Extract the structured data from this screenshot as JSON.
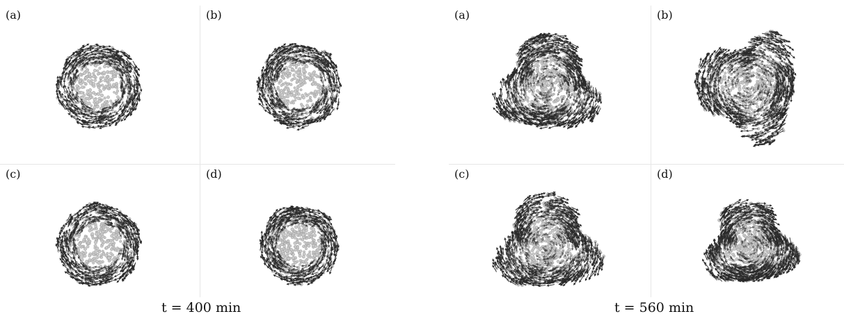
{
  "figures": [
    {
      "caption": "t = 400 min",
      "panels": [
        {
          "label": "(a)",
          "shape": "round",
          "radius": 0.6,
          "seed": 11
        },
        {
          "label": "(b)",
          "shape": "round",
          "radius": 0.6,
          "seed": 23
        },
        {
          "label": "(c)",
          "shape": "round",
          "radius": 0.59,
          "seed": 37
        },
        {
          "label": "(d)",
          "shape": "round",
          "radius": 0.56,
          "seed": 41
        }
      ]
    },
    {
      "caption": "t = 560 min",
      "panels": [
        {
          "label": "(a)",
          "shape": "irregular",
          "radius": 0.8,
          "seed": 53
        },
        {
          "label": "(b)",
          "shape": "irregular",
          "radius": 0.84,
          "seed": 67
        },
        {
          "label": "(c)",
          "shape": "irregular",
          "radius": 0.8,
          "seed": 71
        },
        {
          "label": "(d)",
          "shape": "irregular",
          "radius": 0.7,
          "seed": 83
        }
      ]
    }
  ],
  "colors": {
    "particle": "#c9c9c9",
    "particle_edge": "#8a8a8a",
    "arrow": "#2a2a2a",
    "grid_line": "#e6e6e6",
    "background": "#ffffff"
  }
}
